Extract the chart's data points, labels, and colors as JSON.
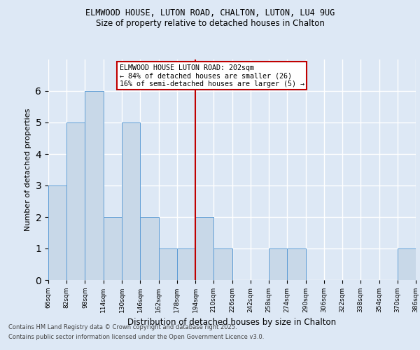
{
  "title1": "ELMWOOD HOUSE, LUTON ROAD, CHALTON, LUTON, LU4 9UG",
  "title2": "Size of property relative to detached houses in Chalton",
  "xlabel": "Distribution of detached houses by size in Chalton",
  "ylabel": "Number of detached properties",
  "bins": [
    66,
    82,
    98,
    114,
    130,
    146,
    162,
    178,
    194,
    210,
    226,
    242,
    258,
    274,
    290,
    306,
    322,
    338,
    354,
    370,
    386
  ],
  "counts": [
    3,
    5,
    6,
    2,
    5,
    2,
    1,
    1,
    2,
    1,
    0,
    0,
    1,
    1,
    0,
    0,
    0,
    0,
    0,
    1
  ],
  "bar_color": "#c8d8e8",
  "bar_edge_color": "#5b9bd5",
  "property_size": 202,
  "vline_color": "#c00000",
  "annotation_text": "ELMWOOD HOUSE LUTON ROAD: 202sqm\n← 84% of detached houses are smaller (26)\n16% of semi-detached houses are larger (5) →",
  "annotation_box_color": "white",
  "annotation_box_edge": "#c00000",
  "ylim": [
    0,
    7
  ],
  "yticks": [
    0,
    1,
    2,
    3,
    4,
    5,
    6,
    7
  ],
  "footer1": "Contains HM Land Registry data © Crown copyright and database right 2025.",
  "footer2": "Contains public sector information licensed under the Open Government Licence v3.0.",
  "bg_color": "#dde8f5",
  "grid_color": "white"
}
